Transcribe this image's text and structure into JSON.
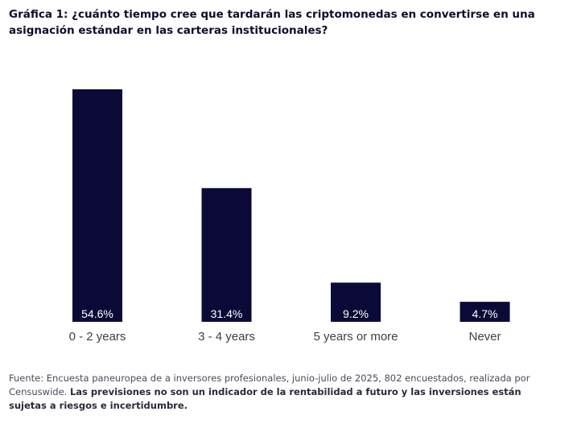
{
  "header": {
    "title": "Gráfica 1: ¿cuánto tiempo cree que tardarán las criptomonedas en convertirse en una asignación estándar en las carteras institucionales?"
  },
  "chart_data": {
    "type": "bar",
    "categories": [
      "0 - 2 years",
      "3 - 4 years",
      "5 years or more",
      "Never"
    ],
    "values": [
      54.6,
      31.4,
      9.2,
      4.7
    ],
    "value_labels": [
      "54.6%",
      "31.4%",
      "9.2%",
      "4.7%"
    ],
    "unit": "%",
    "title": "Gráfica 1: ¿cuánto tiempo cree que tardarán las criptomonedas en convertirse en una asignación estándar en las carteras institucionales?",
    "xlabel": "",
    "ylabel": "",
    "ylim": [
      0,
      54.6
    ],
    "grid": false,
    "legend": "none",
    "bar_color": "#0b0a36",
    "label_color": "#ffffff"
  },
  "footer": {
    "source": "Fuente: Encuesta paneuropea de a inversores profesionales, junio-julio de 2025, 802 encuestados, realizada por Censuswide.",
    "disclaimer": "Las previsiones no son un indicador de la rentabilidad a futuro y las inversiones están sujetas a riesgos e incertidumbre."
  }
}
